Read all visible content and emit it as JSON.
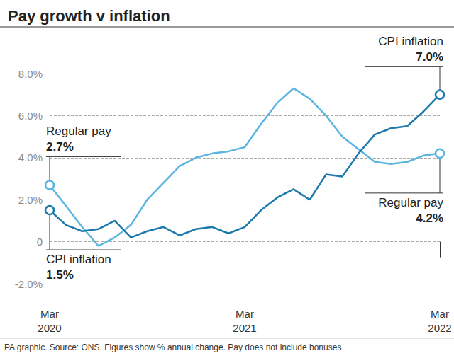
{
  "chart_data": {
    "type": "line",
    "title": "Pay growth v inflation",
    "source": "PA graphic. Source: ONS. Figures show % annual change. Pay does not include bonuses",
    "categories": [
      "Mar\n2020",
      null,
      null,
      null,
      null,
      null,
      null,
      null,
      null,
      null,
      null,
      null,
      "Mar\n2021",
      null,
      null,
      null,
      null,
      null,
      null,
      null,
      null,
      null,
      null,
      null,
      "Mar\n2022"
    ],
    "series": [
      {
        "name": "Regular pay",
        "color": "#5bb5e0",
        "values": [
          2.7,
          1.7,
          0.7,
          -0.2,
          0.2,
          0.8,
          2.0,
          2.8,
          3.6,
          4.0,
          4.2,
          4.3,
          4.5,
          5.6,
          6.6,
          7.3,
          6.8,
          6.0,
          5.0,
          4.4,
          3.8,
          3.7,
          3.8,
          4.1,
          4.2
        ],
        "start_label": {
          "text": "Regular pay",
          "value_label": "2.7%"
        },
        "end_label": {
          "text": "Regular pay",
          "value_label": "4.2%"
        }
      },
      {
        "name": "CPI inflation",
        "color": "#1c79ab",
        "values": [
          1.5,
          0.8,
          0.5,
          0.6,
          1.0,
          0.2,
          0.5,
          0.7,
          0.3,
          0.6,
          0.7,
          0.4,
          0.7,
          1.5,
          2.1,
          2.5,
          2.0,
          3.2,
          3.1,
          4.2,
          5.1,
          5.4,
          5.5,
          6.2,
          7.0
        ],
        "start_label": {
          "text": "CPI inflation",
          "value_label": "1.5%"
        },
        "end_label": {
          "text": "CPI inflation",
          "value_label": "7.0%"
        }
      }
    ],
    "ylim": [
      -2,
      8
    ],
    "yticks": [
      {
        "value": -2,
        "label": "-2.0%"
      },
      0,
      {
        "value": 2,
        "label": "2.0%"
      },
      {
        "value": 4,
        "label": "4.0%"
      },
      {
        "value": 6,
        "label": "6.0%"
      },
      {
        "value": 8,
        "label": "8.0%"
      }
    ],
    "grid": true,
    "marker": "circle"
  }
}
